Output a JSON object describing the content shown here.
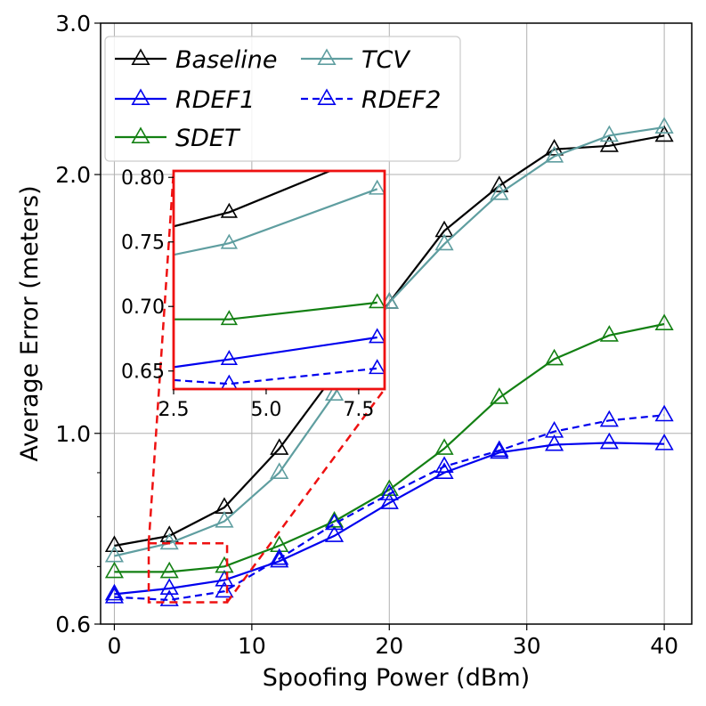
{
  "chart_data": {
    "type": "line",
    "xlabel": "Spoofing Power (dBm)",
    "ylabel": "Average Error (meters)",
    "xlim": [
      -1,
      42
    ],
    "ylim": [
      0.6,
      3.0
    ],
    "yscale": "log",
    "x_ticks": [
      "0",
      "10",
      "20",
      "30",
      "40"
    ],
    "y_ticks": [
      "0.6",
      "1.0",
      "2.0",
      "3.0"
    ],
    "grid": true,
    "legend_position": "top-left",
    "x": [
      0,
      4,
      8,
      12,
      16,
      20,
      24,
      28,
      32,
      36,
      40
    ],
    "series": [
      {
        "name": "Baseline",
        "color": "#000000",
        "dash": "solid",
        "values": [
          0.74,
          0.76,
          0.82,
          0.96,
          1.17,
          1.42,
          1.72,
          1.94,
          2.14,
          2.16,
          2.22
        ]
      },
      {
        "name": "TCV",
        "color": "#5f9ea0",
        "dash": "solid",
        "values": [
          0.72,
          0.745,
          0.79,
          0.9,
          1.11,
          1.42,
          1.66,
          1.9,
          2.1,
          2.22,
          2.27
        ]
      },
      {
        "name": "RDEF1",
        "color": "#0000ee",
        "dash": "solid",
        "values": [
          0.65,
          0.66,
          0.675,
          0.71,
          0.76,
          0.83,
          0.9,
          0.95,
          0.97,
          0.975,
          0.972
        ]
      },
      {
        "name": "SDET",
        "color": "#138013",
        "dash": "solid",
        "values": [
          0.69,
          0.69,
          0.7,
          0.74,
          0.79,
          0.86,
          0.96,
          1.1,
          1.22,
          1.3,
          1.34
        ]
      },
      {
        "name": "RDEF2",
        "color": "#0000ee",
        "dash": "dashed",
        "values": [
          0.645,
          0.64,
          0.655,
          0.715,
          0.785,
          0.85,
          0.915,
          0.955,
          1.005,
          1.035,
          1.05
        ]
      }
    ],
    "inset": {
      "xlim": [
        2.5,
        8.2
      ],
      "ylim": [
        0.636,
        0.805
      ],
      "x_ticks": [
        "2.5",
        "5.0",
        "7.5"
      ],
      "y_ticks": [
        "0.65",
        "0.70",
        "0.75",
        "0.80"
      ],
      "highlight_region": {
        "x": [
          2.5,
          8.2
        ],
        "y": [
          0.636,
          0.745
        ]
      },
      "series": [
        {
          "name": "Baseline",
          "x": [
            2.5,
            4,
            8
          ],
          "values": [
            0.762,
            0.773,
            0.82
          ]
        },
        {
          "name": "TCV",
          "x": [
            2.5,
            4,
            8
          ],
          "values": [
            0.74,
            0.749,
            0.791
          ]
        },
        {
          "name": "SDET",
          "x": [
            2.5,
            4,
            8
          ],
          "values": [
            0.69,
            0.69,
            0.703
          ]
        },
        {
          "name": "RDEF1",
          "x": [
            2.5,
            4,
            8
          ],
          "values": [
            0.653,
            0.659,
            0.676
          ]
        },
        {
          "name": "RDEF2",
          "x": [
            2.5,
            4,
            8
          ],
          "values": [
            0.643,
            0.64,
            0.652
          ]
        }
      ]
    }
  }
}
